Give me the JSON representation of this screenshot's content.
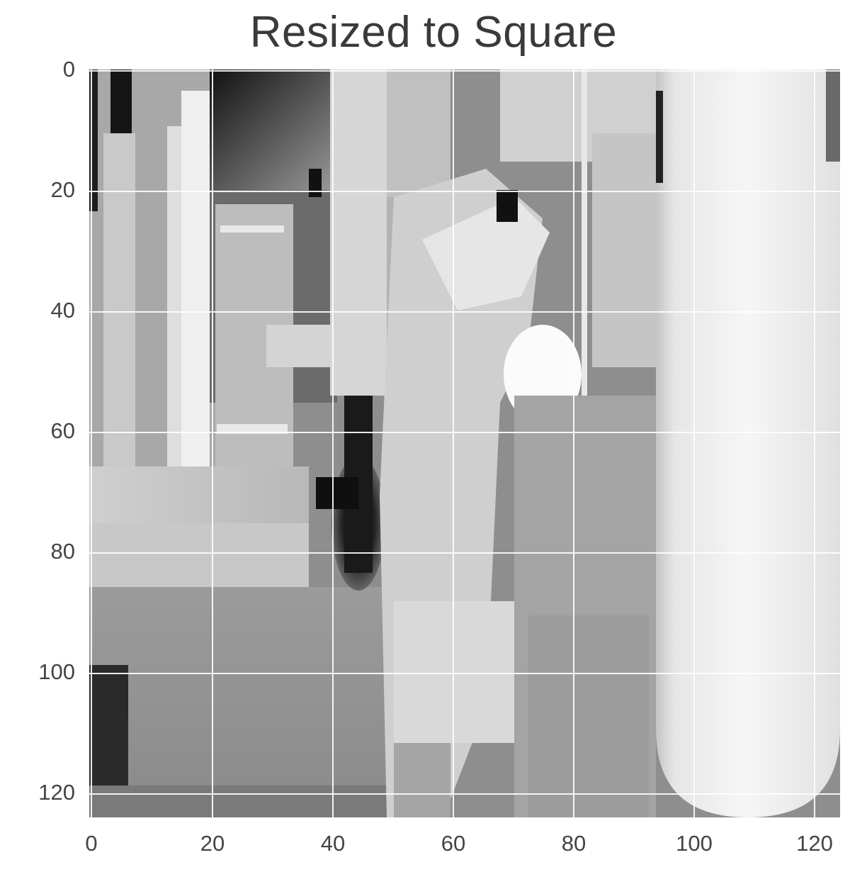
{
  "figure": {
    "title": "Resized to Square",
    "x_ticks": [
      "0",
      "20",
      "40",
      "60",
      "80",
      "100",
      "120"
    ],
    "y_ticks": [
      "0",
      "20",
      "40",
      "60",
      "80",
      "100",
      "120"
    ],
    "grid": true,
    "colormap": "grayscale"
  }
}
